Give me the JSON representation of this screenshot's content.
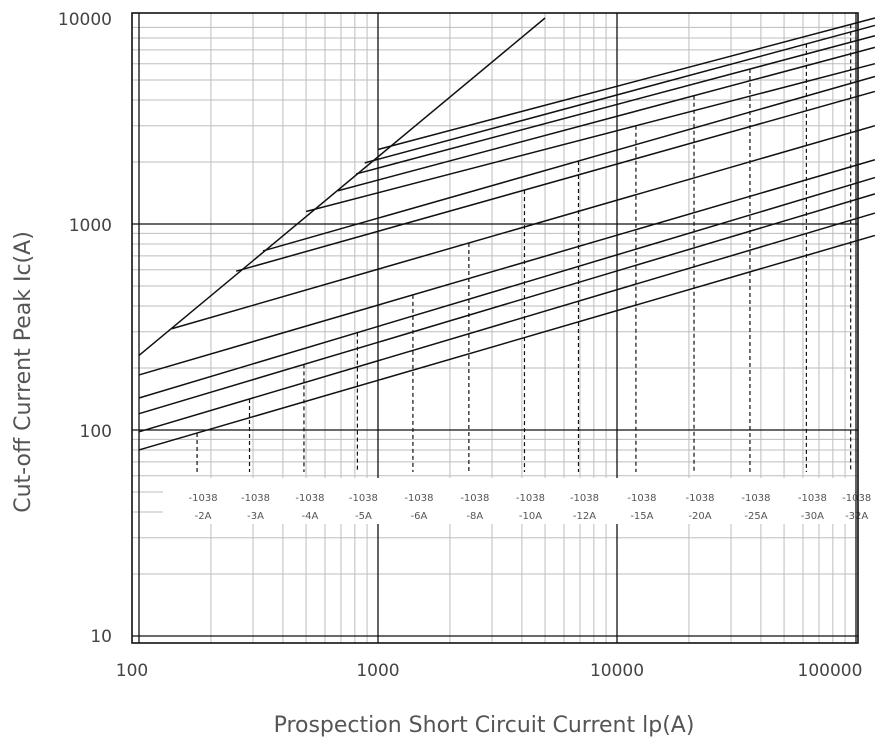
{
  "chart_data": {
    "type": "line",
    "xlabel": "Prospection Short Circuit Current lp(A)",
    "ylabel": "Cut-off Current Peak Ic(A)",
    "x_scale": "log",
    "y_scale": "log",
    "xlim": [
      100,
      120000
    ],
    "ylim": [
      10,
      10000
    ],
    "x_ticks": [
      "100",
      "1000",
      "10000",
      "100000"
    ],
    "y_ticks": [
      "10",
      "100",
      "1000",
      "10000"
    ],
    "grid": true,
    "reference_line": {
      "name": "",
      "x": [
        100,
        5000
      ],
      "y": [
        230,
        10000
      ]
    },
    "series": [
      {
        "name": "-1038 -2A",
        "x": [
          100,
          120000
        ],
        "y": [
          80,
          880
        ],
        "rated_x": 175
      },
      {
        "name": "-1038 -3A",
        "x": [
          100,
          120000
        ],
        "y": [
          98,
          1130
        ],
        "rated_x": 290
      },
      {
        "name": "-1038 -4A",
        "x": [
          100,
          120000
        ],
        "y": [
          120,
          1400
        ],
        "rated_x": 490
      },
      {
        "name": "-1038 -5A",
        "x": [
          100,
          120000
        ],
        "y": [
          143,
          1680
        ],
        "rated_x": 820
      },
      {
        "name": "-1038 -6A",
        "x": [
          100,
          120000
        ],
        "y": [
          185,
          2050
        ],
        "rated_x": 1400
      },
      {
        "name": "-1038 -8A",
        "x": [
          137,
          120000
        ],
        "y": [
          310,
          3000
        ],
        "rated_x": 2400
      },
      {
        "name": "-1038 -10A",
        "x": [
          255,
          120000
        ],
        "y": [
          590,
          4400
        ],
        "rated_x": 4100
      },
      {
        "name": "-1038 -12A",
        "x": [
          330,
          120000
        ],
        "y": [
          740,
          5200
        ],
        "rated_x": 6900
      },
      {
        "name": "-1038 -15A",
        "x": [
          500,
          120000
        ],
        "y": [
          1150,
          6000
        ],
        "rated_x": 12000
      },
      {
        "name": "-1038 -20A",
        "x": [
          680,
          120000
        ],
        "y": [
          1450,
          7200
        ],
        "rated_x": 21000
      },
      {
        "name": "-1038 -25A",
        "x": [
          810,
          120000
        ],
        "y": [
          1750,
          8200
        ],
        "rated_x": 36000
      },
      {
        "name": "-1038 -30A",
        "x": [
          880,
          120000
        ],
        "y": [
          1980,
          9200
        ],
        "rated_x": 62000
      },
      {
        "name": "-1038 -32A",
        "x": [
          1000,
          120000
        ],
        "y": [
          2300,
          10000
        ],
        "rated_x": 95000
      }
    ]
  }
}
